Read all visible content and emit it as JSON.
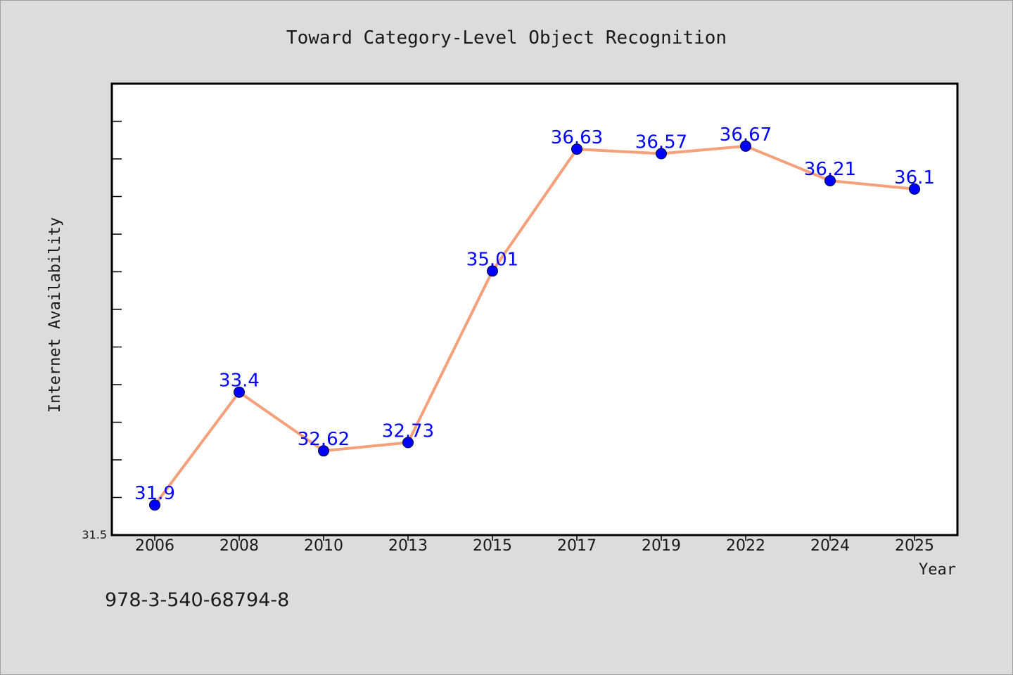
{
  "chart_data": {
    "type": "line",
    "title": "Toward Category-Level Object Recognition",
    "xlabel": "Year",
    "ylabel": "Internet Availability",
    "categories": [
      "2006",
      "2008",
      "2010",
      "2013",
      "2015",
      "2017",
      "2019",
      "2022",
      "2024",
      "2025"
    ],
    "series": [
      {
        "values": [
          31.9,
          33.4,
          32.62,
          32.73,
          35.01,
          36.63,
          36.57,
          36.67,
          36.21,
          36.1
        ],
        "labels": [
          "31.9",
          "33.4",
          "32.62",
          "32.73",
          "35.01",
          "36.63",
          "36.57",
          "36.67",
          "36.21",
          "36.1"
        ],
        "line_color": "#f4a07a",
        "marker_color": "#0000ff"
      }
    ],
    "ylim": [
      31.5,
      37.5
    ],
    "y_min_label": "31.5",
    "grid": false,
    "legend": "none"
  },
  "footer": {
    "code": "978-3-540-68794-8"
  }
}
